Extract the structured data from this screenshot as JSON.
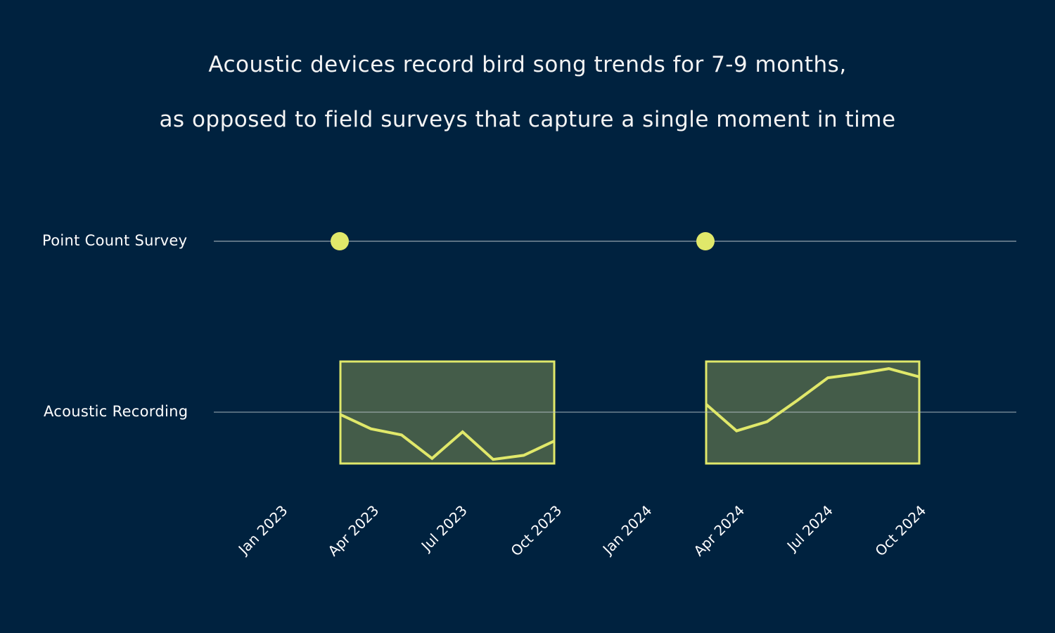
{
  "title": {
    "line1": "Acoustic devices record bird song trends for 7-9 months,",
    "line2": "as opposed to field surveys that capture a single moment in time"
  },
  "rows": {
    "point_count": "Point Count Survey",
    "acoustic": "Acoustic Recording"
  },
  "x_ticks": [
    "Jan 2023",
    "Apr 2023",
    "Jul 2023",
    "Oct 2023",
    "Jan 2024",
    "Apr 2024",
    "Jul 2024",
    "Oct 2024"
  ],
  "colors": {
    "background": "#00223f",
    "accent": "#e0e86a",
    "box_fill": "#445c49",
    "axis_line": "#b8c2c8",
    "text": "#ffffff"
  },
  "chart_data": {
    "type": "line",
    "title": "Acoustic devices record bird song trends for 7-9 months, as opposed to field surveys that capture a single moment in time",
    "xlabel": "",
    "ylabel": "",
    "categories": [
      "Jan 2023",
      "Apr 2023",
      "Jul 2023",
      "Oct 2023",
      "Jan 2024",
      "Apr 2024",
      "Jul 2024",
      "Oct 2024"
    ],
    "rows": [
      "Point Count Survey",
      "Acoustic Recording"
    ],
    "series": [
      {
        "name": "Point Count Survey",
        "type": "scatter",
        "points": [
          {
            "date": "Apr 2023",
            "value": 1
          },
          {
            "date": "Apr 2024",
            "value": 1
          }
        ]
      },
      {
        "name": "Acoustic Recording 2023",
        "type": "line",
        "window": [
          "Apr 2023",
          "Oct 2023"
        ],
        "x": [
          0,
          1,
          2,
          3,
          4,
          5,
          6,
          7
        ],
        "values": [
          48,
          34,
          28,
          5,
          31,
          4,
          8,
          22
        ]
      },
      {
        "name": "Acoustic Recording 2024",
        "type": "line",
        "window": [
          "Apr 2024",
          "Oct 2024"
        ],
        "x": [
          0,
          1,
          2,
          3,
          4,
          5,
          6,
          7
        ],
        "values": [
          58,
          32,
          41,
          62,
          84,
          88,
          93,
          85
        ]
      }
    ],
    "grid": false,
    "legend": "none"
  }
}
